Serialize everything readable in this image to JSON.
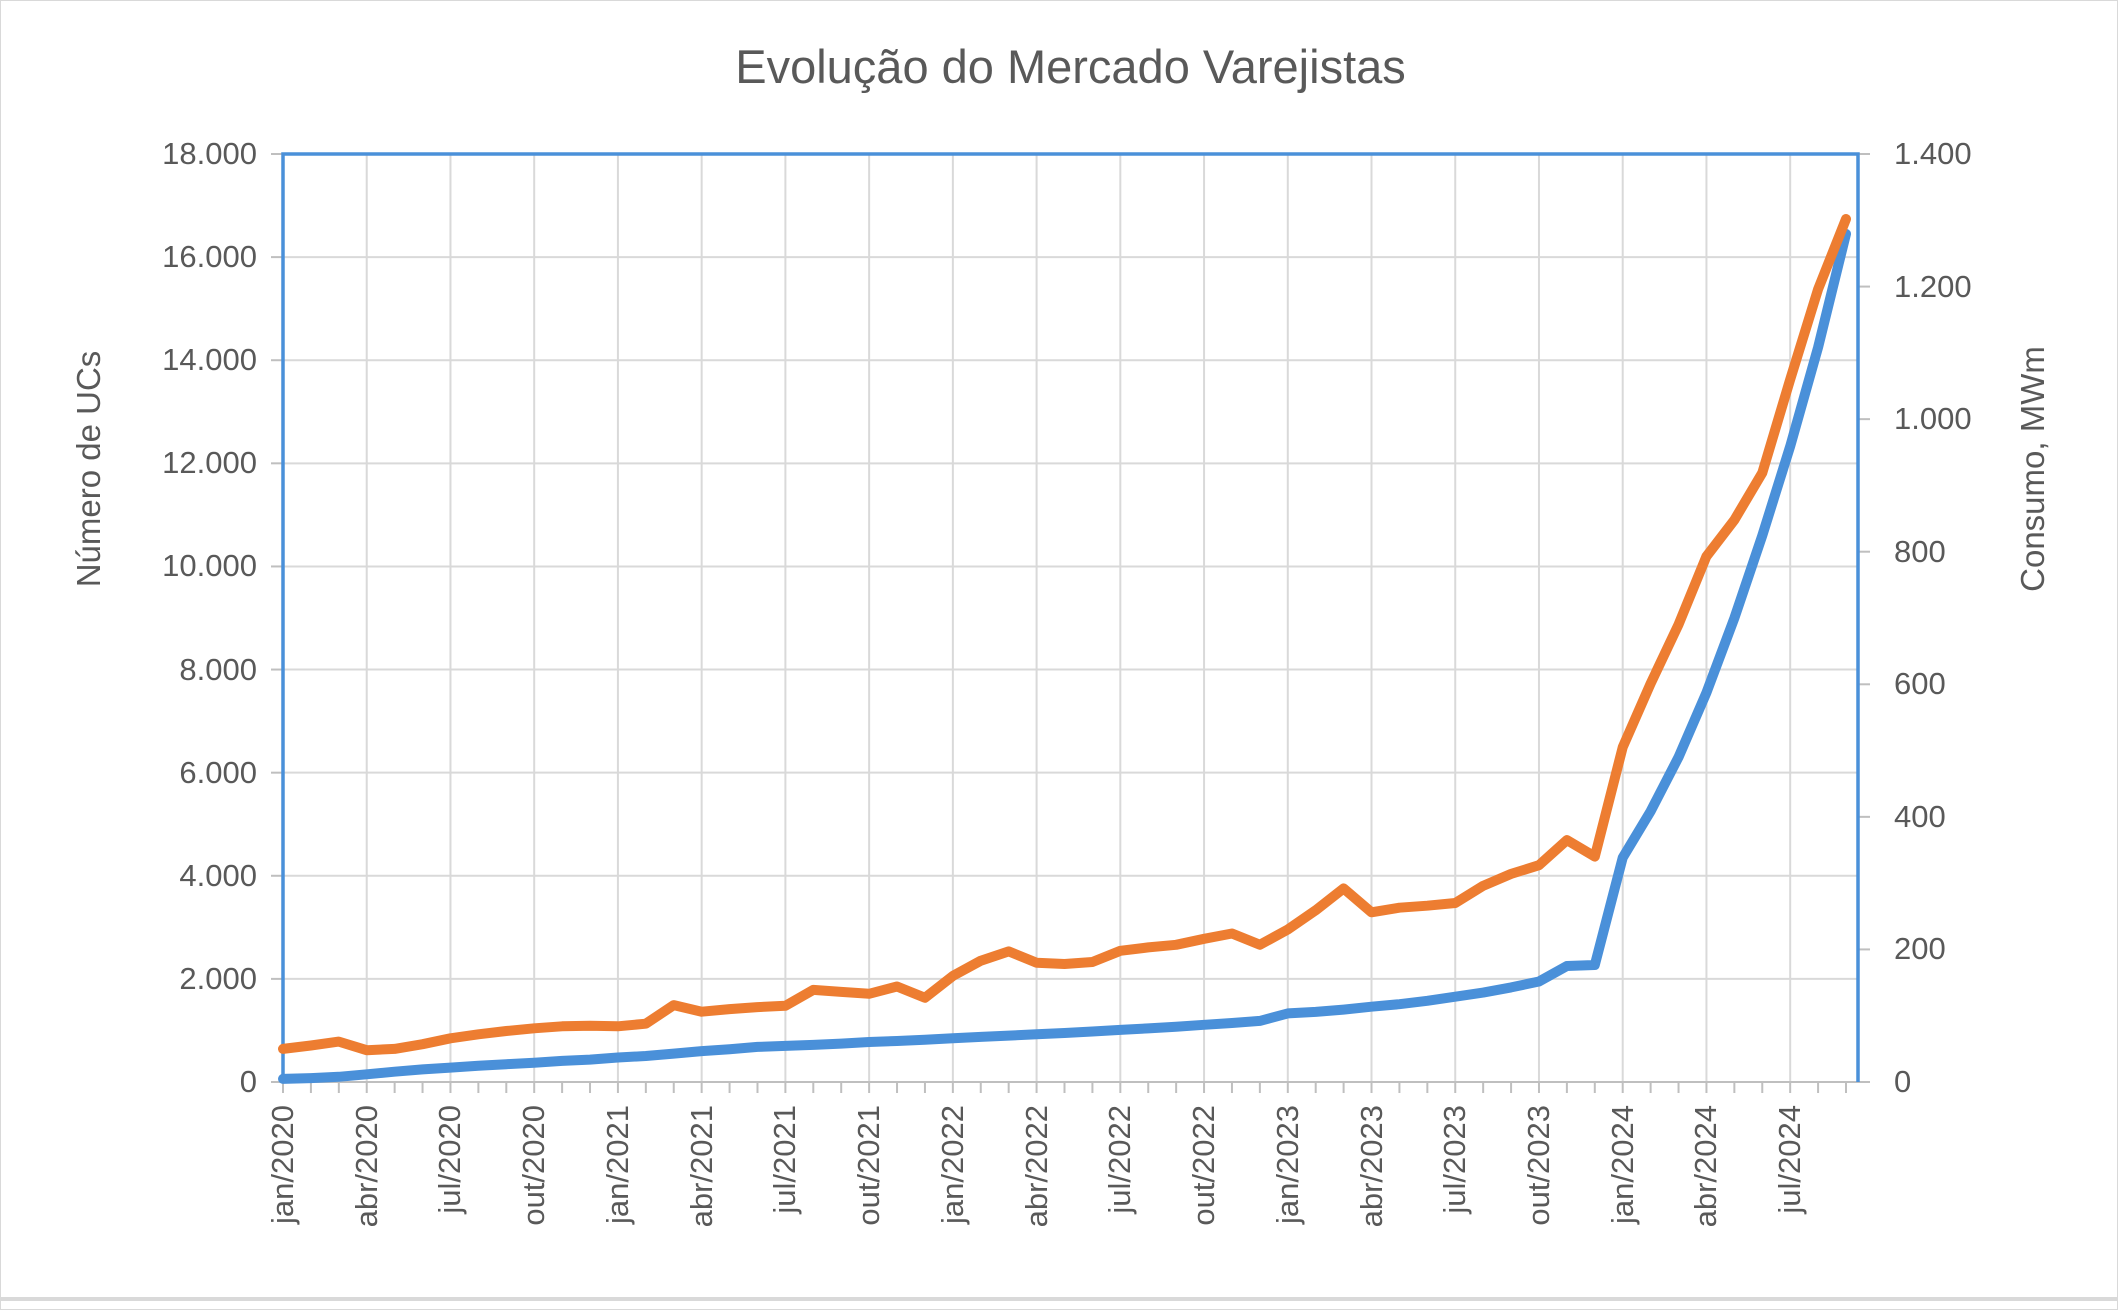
{
  "title": "Evolução do Mercado Varejistas",
  "colors": {
    "ucs_line": "#4A90D9",
    "consumo_line": "#ED7D31",
    "plot_border": "#4A90D9",
    "gridline": "#D9D9D9",
    "axis_line": "#BFBFBF",
    "text": "#595959"
  },
  "chart_data": {
    "type": "line",
    "title": "Evolução do Mercado Varejistas",
    "grid": true,
    "legend": "none",
    "x": [
      "jan/2020",
      "fev/2020",
      "mar/2020",
      "abr/2020",
      "mai/2020",
      "jun/2020",
      "jul/2020",
      "ago/2020",
      "set/2020",
      "out/2020",
      "nov/2020",
      "dez/2020",
      "jan/2021",
      "fev/2021",
      "mar/2021",
      "abr/2021",
      "mai/2021",
      "jun/2021",
      "jul/2021",
      "ago/2021",
      "set/2021",
      "out/2021",
      "nov/2021",
      "dez/2021",
      "jan/2022",
      "fev/2022",
      "mar/2022",
      "abr/2022",
      "mai/2022",
      "jun/2022",
      "jul/2022",
      "ago/2022",
      "set/2022",
      "out/2022",
      "nov/2022",
      "dez/2022",
      "jan/2023",
      "fev/2023",
      "mar/2023",
      "abr/2023",
      "mai/2023",
      "jun/2023",
      "jul/2023",
      "ago/2023",
      "set/2023",
      "out/2023",
      "nov/2023",
      "dez/2023",
      "jan/2024",
      "fev/2024",
      "mar/2024",
      "abr/2024",
      "mai/2024",
      "jun/2024",
      "jul/2024",
      "ago/2024",
      "set/2024"
    ],
    "x_tick_labels": [
      "jan/2020",
      "abr/2020",
      "jul/2020",
      "out/2020",
      "jan/2021",
      "abr/2021",
      "jul/2021",
      "out/2021",
      "jan/2022",
      "abr/2022",
      "jul/2022",
      "out/2022",
      "jan/2023",
      "abr/2023",
      "jul/2023",
      "out/2023",
      "jan/2024",
      "abr/2024",
      "jul/2024"
    ],
    "x_label_interval": 3,
    "series": [
      {
        "name": "Número de UCs",
        "axis": "left",
        "color": "#4A90D9",
        "values": [
          60,
          75,
          100,
          150,
          200,
          245,
          280,
          315,
          345,
          375,
          410,
          435,
          475,
          505,
          550,
          600,
          635,
          680,
          700,
          720,
          745,
          775,
          795,
          820,
          850,
          875,
          900,
          925,
          950,
          980,
          1010,
          1040,
          1070,
          1110,
          1145,
          1185,
          1330,
          1360,
          1405,
          1460,
          1510,
          1575,
          1655,
          1735,
          1835,
          1950,
          2250,
          2270,
          4350,
          5250,
          6300,
          7550,
          9000,
          10600,
          12330,
          14250,
          16450
        ]
      },
      {
        "name": "Consumo, MWm",
        "axis": "right",
        "color": "#ED7D31",
        "values": [
          50,
          55,
          61,
          48,
          50,
          57,
          66,
          72,
          77,
          81,
          84,
          85,
          84,
          88,
          116,
          106,
          110,
          113,
          115,
          139,
          136,
          133,
          144,
          127,
          160,
          183,
          197,
          180,
          178,
          181,
          198,
          203,
          207,
          216,
          224,
          207,
          230,
          259,
          292,
          256,
          263,
          266,
          270,
          296,
          314,
          327,
          365,
          340,
          505,
          601,
          690,
          793,
          848,
          919,
          1060,
          1196,
          1302
        ]
      }
    ],
    "left_axis": {
      "label": "Número de UCs",
      "min": 0,
      "max": 18000,
      "step": 2000,
      "tick_labels": [
        "0",
        "2.000",
        "4.000",
        "6.000",
        "8.000",
        "10.000",
        "12.000",
        "14.000",
        "16.000",
        "18.000"
      ]
    },
    "right_axis": {
      "label": "Consumo, MWm",
      "min": 0,
      "max": 1400,
      "step": 200,
      "tick_labels": [
        "0",
        "200",
        "400",
        "600",
        "800",
        "1.000",
        "1.200",
        "1.400"
      ]
    }
  }
}
